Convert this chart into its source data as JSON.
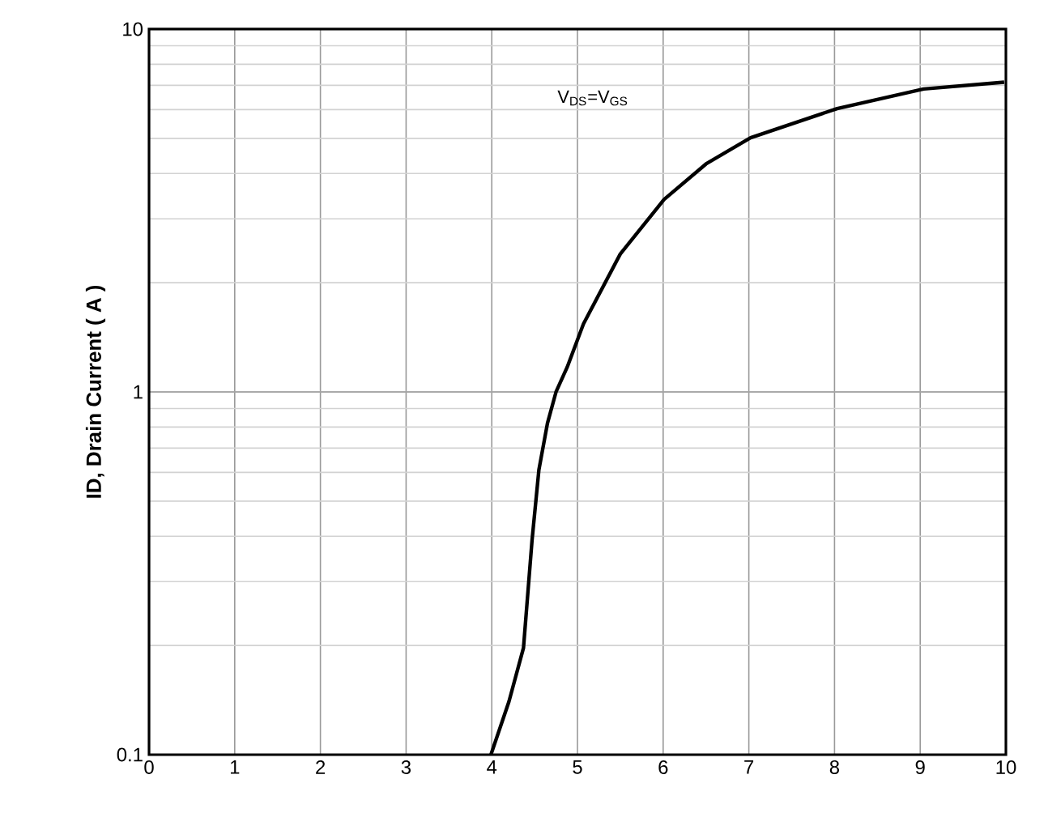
{
  "chart_data": {
    "type": "line",
    "ylabel": "ID, Drain Current ( A )",
    "annotations": [
      "V$_{DS}$=V$_{GS}$"
    ],
    "x": [
      3.99,
      4.2,
      4.37,
      4.47,
      4.55,
      4.65,
      4.75,
      4.88,
      5.07,
      5.5,
      6.01,
      6.5,
      7.02,
      8.03,
      9.04,
      9.98
    ],
    "series": [
      {
        "color": "#000000",
        "values": [
          0.1,
          0.14,
          0.197,
          0.39,
          0.61,
          0.82,
          1.0,
          1.17,
          1.54,
          2.4,
          3.39,
          4.25,
          5.02,
          6.04,
          6.84,
          7.14
        ]
      }
    ],
    "xlim": [
      0,
      10
    ],
    "xticks": [
      0,
      1,
      2,
      3,
      4,
      5,
      6,
      7,
      8,
      9,
      10
    ],
    "ylim": [
      0.1,
      10
    ],
    "yticks": [
      0.1,
      1,
      10
    ],
    "log": "y",
    "grid": true,
    "marker": "none",
    "line_style": "solid"
  }
}
